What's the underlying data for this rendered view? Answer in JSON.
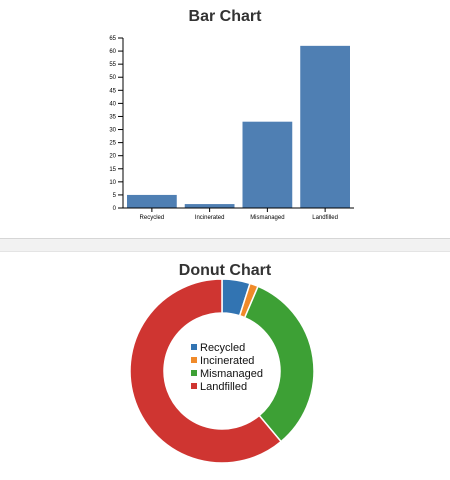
{
  "chart_data": [
    {
      "type": "bar",
      "title": "Bar Chart",
      "categories": [
        "Recycled",
        "Incinerated",
        "Mismanaged",
        "Landfilled"
      ],
      "values": [
        5,
        1.5,
        33,
        62
      ],
      "ylim": [
        0,
        65
      ],
      "yticks": [
        "0",
        "5",
        "10",
        "15",
        "20",
        "25",
        "30",
        "35",
        "40",
        "45",
        "50",
        "55",
        "60",
        "65"
      ],
      "xlabel": "",
      "ylabel": "",
      "grid": false,
      "color": "#4f7fb3"
    },
    {
      "type": "pie",
      "title": "Donut Chart",
      "categories": [
        "Recycled",
        "Incinerated",
        "Mismanaged",
        "Landfilled"
      ],
      "values": [
        5,
        1.5,
        33,
        62
      ],
      "colors": [
        "#3274b2",
        "#f08a2a",
        "#3da035",
        "#cf3531"
      ],
      "legend": "center"
    }
  ]
}
